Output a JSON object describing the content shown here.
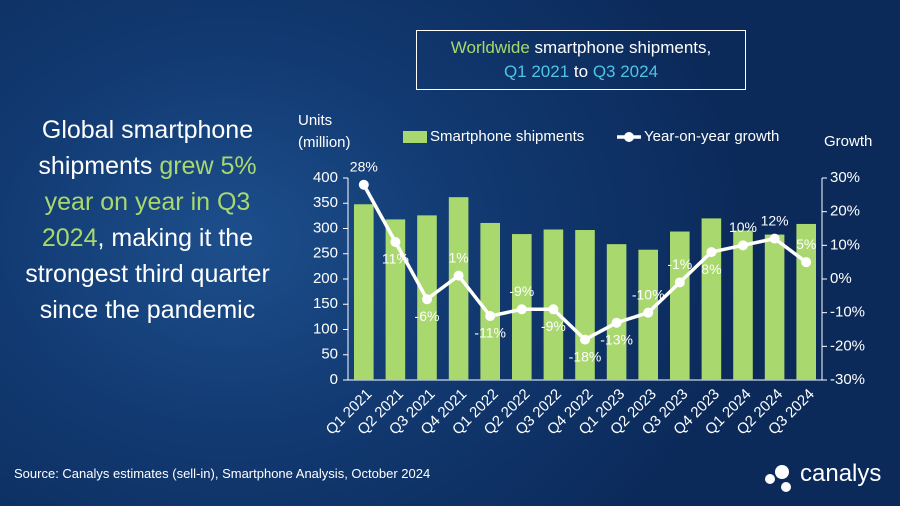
{
  "headline": [
    {
      "text": "Global smartphone shipments ",
      "color": "#ffffff"
    },
    {
      "text": "grew 5% year on year in Q3 2024",
      "color": "#a9d86e"
    },
    {
      "text": ", making it the strongest third quarter since the pandemic",
      "color": "#ffffff"
    }
  ],
  "source": "Source: Canalys estimates (sell-in), Smartphone Analysis, October 2024",
  "logo": "canalys",
  "chart_data": {
    "type": "bar",
    "title_lines": [
      [
        {
          "text": "Worldwide",
          "color": "#a9d86e"
        },
        {
          "text": " smartphone shipments,",
          "color": "#ffffff"
        }
      ],
      [
        {
          "text": "Q1 2021",
          "color": "#4fc3e8"
        },
        {
          "text": " to ",
          "color": "#ffffff"
        },
        {
          "text": "Q3 2024",
          "color": "#4fc3e8"
        }
      ]
    ],
    "y_label": "Units (million)",
    "y2_label": "Growth",
    "categories": [
      "Q1 2021",
      "Q2 2021",
      "Q3 2021",
      "Q4 2021",
      "Q1 2022",
      "Q2 2022",
      "Q3 2022",
      "Q4 2022",
      "Q1 2023",
      "Q2 2023",
      "Q3 2023",
      "Q4 2023",
      "Q1 2024",
      "Q2 2024",
      "Q3 2024"
    ],
    "series": [
      {
        "name": "Smartphone shipments",
        "type": "bar",
        "color": "#a9d86e",
        "values": [
          348,
          318,
          326,
          362,
          311,
          289,
          298,
          297,
          269,
          258,
          294,
          320,
          296,
          288,
          309
        ]
      },
      {
        "name": "Year-on-year growth",
        "type": "line",
        "axis": "y2",
        "color": "#ffffff",
        "values": [
          28,
          11,
          -6,
          1,
          -11,
          -9,
          -9,
          -18,
          -13,
          -10,
          -1,
          8,
          10,
          12,
          5
        ],
        "value_labels": [
          "28%",
          "11%",
          "-6%",
          "1%",
          "-11%",
          "-9%",
          "-9%",
          "-18%",
          "-13%",
          "-10%",
          "-1%",
          "8%",
          "10%",
          "12%",
          "5%"
        ]
      }
    ],
    "ylim": [
      0,
      400
    ],
    "yticks": [
      0,
      50,
      100,
      150,
      200,
      250,
      300,
      350,
      400
    ],
    "y2lim": [
      -30,
      30
    ],
    "y2ticks": [
      {
        "value": -30,
        "label": "-30%"
      },
      {
        "value": -20,
        "label": "-20%"
      },
      {
        "value": -10,
        "label": "-10%"
      },
      {
        "value": 0,
        "label": "0%"
      },
      {
        "value": 10,
        "label": "10%"
      },
      {
        "value": 20,
        "label": "20%"
      },
      {
        "value": 30,
        "label": "30%"
      }
    ],
    "grid": false,
    "legend": "top"
  }
}
